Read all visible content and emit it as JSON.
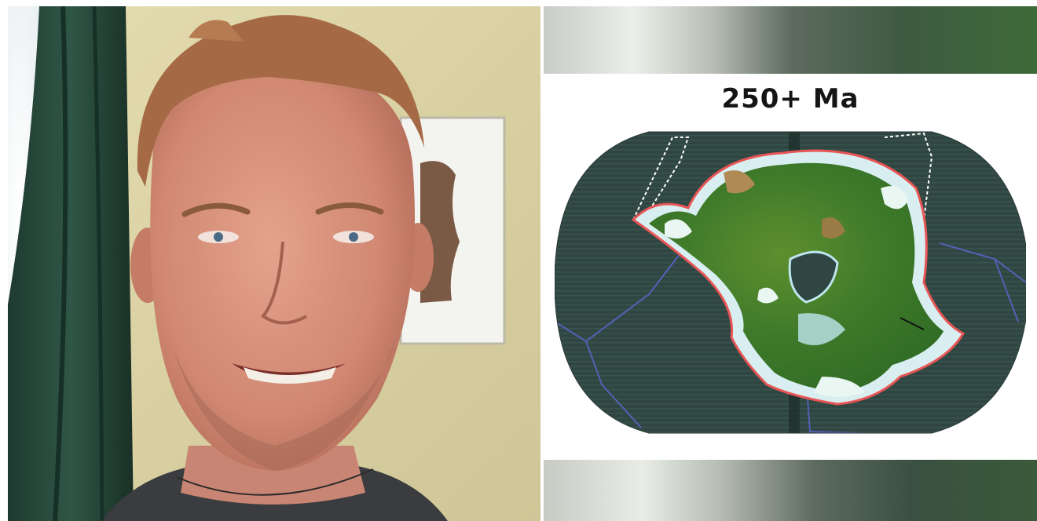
{
  "slide": {
    "title": "250+ Ma"
  },
  "colors": {
    "ocean": "#2f4642",
    "land": "#3f7a2a",
    "shelf": "#bfe6ee",
    "plate_boundary": "#5560b8",
    "continent_outline": "#e85555",
    "curtain": "#2d4a3e",
    "wall": "#d8d0a4"
  },
  "icons": {
    "portrait": "person-photo",
    "map": "paleogeographic-world-map"
  }
}
